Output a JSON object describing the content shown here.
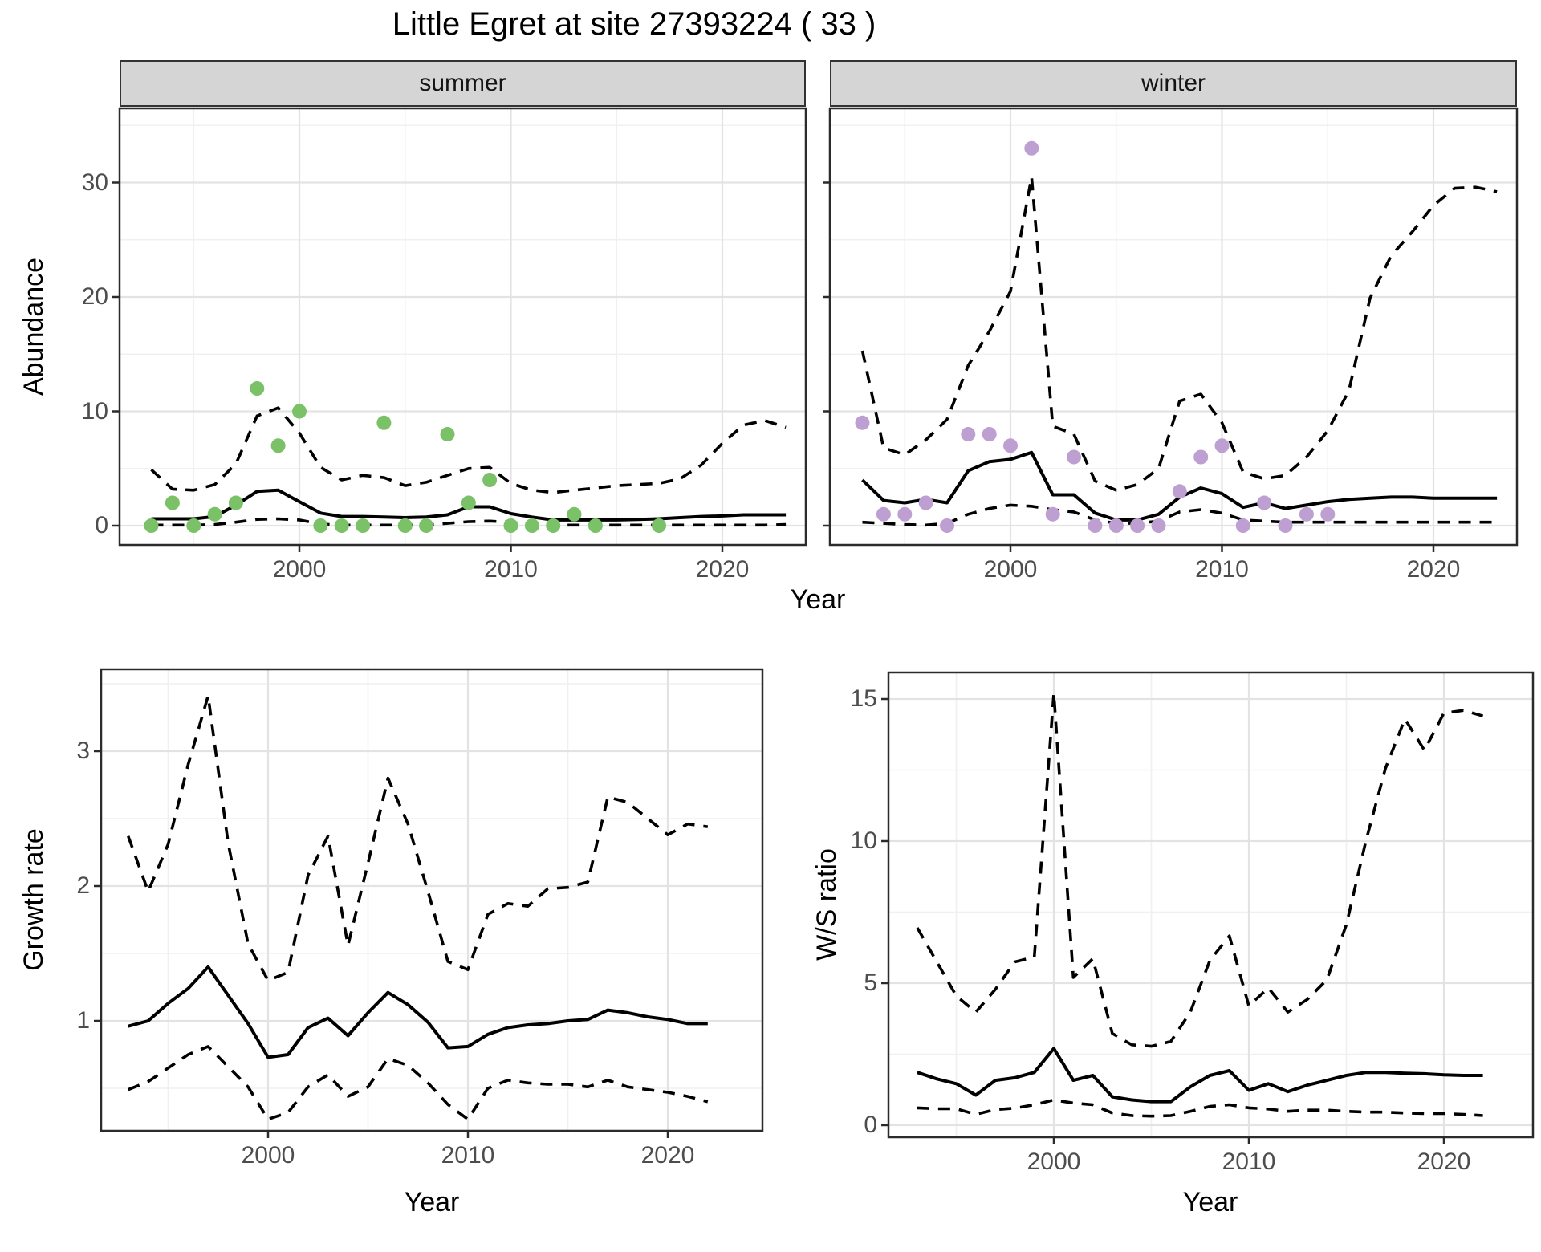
{
  "title": "Little Egret at site 27393224 ( 33 )",
  "colors": {
    "summer_point": "#7ac168",
    "winter_point": "#be9fd2",
    "line": "#000000",
    "strip_bg": "#d5d5d5",
    "grid_major": "#e3e3e3",
    "grid_minor": "#f0f0f0",
    "panel_border": "#2b2b2b",
    "tick_text": "#4d4d4d"
  },
  "chart_data": [
    {
      "name": "abundance-summer",
      "type": "line",
      "facet_label": "summer",
      "xlabel": "Year",
      "ylabel": "Abundance",
      "x_ticks": [
        2000,
        2010,
        2020
      ],
      "y_ticks": [
        0,
        10,
        20,
        30
      ],
      "xlim": [
        1991.8,
        2024.4
      ],
      "ylim": [
        -1.7,
        36.5
      ],
      "legend": "none",
      "grid": true,
      "years": [
        1993,
        1994,
        1995,
        1996,
        1997,
        1998,
        1999,
        2000,
        2001,
        2002,
        2003,
        2004,
        2005,
        2006,
        2007,
        2008,
        2009,
        2010,
        2011,
        2012,
        2013,
        2014,
        2015,
        2016,
        2017,
        2018,
        2019,
        2020,
        2021,
        2022,
        2023
      ],
      "series": [
        {
          "name": "median",
          "style": "solid",
          "values": [
            0.6,
            0.6,
            0.6,
            0.8,
            1.8,
            3.0,
            3.1,
            2.1,
            1.1,
            0.8,
            0.8,
            0.75,
            0.7,
            0.75,
            0.95,
            1.65,
            1.65,
            1.05,
            0.75,
            0.5,
            0.5,
            0.5,
            0.5,
            0.55,
            0.6,
            0.7,
            0.8,
            0.85,
            0.95,
            0.95,
            0.95
          ]
        },
        {
          "name": "upper 95% CI",
          "style": "dashed",
          "values": [
            4.9,
            3.2,
            3.1,
            3.6,
            5.4,
            9.6,
            10.3,
            8.1,
            5.1,
            4.0,
            4.4,
            4.2,
            3.5,
            3.8,
            4.4,
            5.0,
            5.1,
            3.7,
            3.1,
            2.9,
            3.1,
            3.3,
            3.5,
            3.6,
            3.7,
            4.1,
            5.3,
            7.2,
            8.8,
            9.2,
            8.6
          ]
        },
        {
          "name": "lower 95% CI",
          "style": "dashed",
          "values": [
            0.05,
            0.05,
            0.05,
            0.1,
            0.3,
            0.55,
            0.6,
            0.5,
            0.15,
            0.05,
            0.05,
            0.05,
            0.05,
            0.05,
            0.2,
            0.35,
            0.4,
            0.3,
            0.1,
            0.05,
            0.05,
            0.05,
            0.05,
            0.05,
            0.05,
            0.05,
            0.05,
            0.05,
            0.05,
            0.05,
            0.1
          ]
        }
      ],
      "points": {
        "name": "observed-counts-summer",
        "color_key": "summer_point",
        "x": [
          1993,
          1994,
          1995,
          1996,
          1997,
          1998,
          1999,
          2000,
          2001,
          2002,
          2003,
          2004,
          2005,
          2006,
          2007,
          2008,
          2009,
          2010,
          2011,
          2012,
          2013,
          2014,
          2017
        ],
        "y": [
          0,
          2,
          0,
          1,
          2,
          12,
          7,
          10,
          0,
          0,
          0,
          9,
          0,
          0,
          8,
          2,
          4,
          0,
          0,
          0,
          1,
          0,
          0
        ]
      }
    },
    {
      "name": "abundance-winter",
      "type": "line",
      "facet_label": "winter",
      "xlabel": "Year",
      "ylabel": "Abundance",
      "x_ticks": [
        2000,
        2010,
        2020
      ],
      "y_ticks": [
        0,
        10,
        20,
        30
      ],
      "xlim": [
        1991.8,
        2024.4
      ],
      "ylim": [
        -1.7,
        36.5
      ],
      "legend": "none",
      "grid": true,
      "years": [
        1993,
        1994,
        1995,
        1996,
        1997,
        1998,
        1999,
        2000,
        2001,
        2002,
        2003,
        2004,
        2005,
        2006,
        2007,
        2008,
        2009,
        2010,
        2011,
        2012,
        2013,
        2014,
        2015,
        2016,
        2017,
        2018,
        2019,
        2020,
        2021,
        2022,
        2023
      ],
      "series": [
        {
          "name": "median",
          "style": "solid",
          "values": [
            4.0,
            2.2,
            2.0,
            2.3,
            2.0,
            4.8,
            5.6,
            5.8,
            6.4,
            2.7,
            2.7,
            1.1,
            0.5,
            0.5,
            1.0,
            2.5,
            3.3,
            2.8,
            1.6,
            2.0,
            1.5,
            1.8,
            2.1,
            2.3,
            2.4,
            2.5,
            2.5,
            2.4,
            2.4,
            2.4,
            2.4
          ]
        },
        {
          "name": "upper 95% CI",
          "style": "dashed",
          "values": [
            15.3,
            6.8,
            6.2,
            7.5,
            9.3,
            14.0,
            17.0,
            20.5,
            30.5,
            8.7,
            8.0,
            3.9,
            3.1,
            3.6,
            5.0,
            10.9,
            11.5,
            9.0,
            4.7,
            4.1,
            4.4,
            6.0,
            8.3,
            11.8,
            19.9,
            23.6,
            25.7,
            28.0,
            29.5,
            29.6,
            29.2
          ]
        },
        {
          "name": "lower 95% CI",
          "style": "dashed",
          "values": [
            0.3,
            0.2,
            0.1,
            0.05,
            0.2,
            1.0,
            1.5,
            1.8,
            1.7,
            1.4,
            1.2,
            0.5,
            0.2,
            0.2,
            0.4,
            1.2,
            1.4,
            1.1,
            0.5,
            0.4,
            0.3,
            0.3,
            0.3,
            0.3,
            0.3,
            0.3,
            0.3,
            0.3,
            0.3,
            0.3,
            0.3
          ]
        }
      ],
      "points": {
        "name": "observed-counts-winter",
        "color_key": "winter_point",
        "x": [
          1993,
          1994,
          1995,
          1996,
          1997,
          1998,
          1999,
          2000,
          2001,
          2002,
          2003,
          2004,
          2005,
          2006,
          2007,
          2008,
          2009,
          2010,
          2011,
          2012,
          2013,
          2014,
          2015
        ],
        "y": [
          9,
          1,
          1,
          2,
          0,
          8,
          8,
          7,
          33,
          1,
          6,
          0,
          0,
          0,
          0,
          3,
          6,
          7,
          0,
          2,
          0,
          1,
          1
        ]
      }
    },
    {
      "name": "growth-rate",
      "type": "line",
      "facet_label": "",
      "xlabel": "Year",
      "ylabel": "Growth rate",
      "x_ticks": [
        2000,
        2010,
        2020
      ],
      "y_ticks": [
        1,
        2,
        3
      ],
      "xlim": [
        1991.6,
        2024.7
      ],
      "ylim": [
        0.19,
        3.61
      ],
      "legend": "none",
      "grid": true,
      "years": [
        1993,
        1994,
        1995,
        1996,
        1997,
        1998,
        1999,
        2000,
        2001,
        2002,
        2003,
        2004,
        2005,
        2006,
        2007,
        2008,
        2009,
        2010,
        2011,
        2012,
        2013,
        2014,
        2015,
        2016,
        2017,
        2018,
        2019,
        2020,
        2021,
        2022
      ],
      "series": [
        {
          "name": "median",
          "style": "solid",
          "values": [
            0.96,
            1.0,
            1.13,
            1.24,
            1.4,
            1.19,
            0.98,
            0.73,
            0.75,
            0.95,
            1.02,
            0.89,
            1.06,
            1.21,
            1.12,
            0.99,
            0.8,
            0.81,
            0.9,
            0.95,
            0.97,
            0.98,
            1.0,
            1.01,
            1.08,
            1.06,
            1.03,
            1.01,
            0.98,
            0.98
          ]
        },
        {
          "name": "upper 95% CI",
          "style": "dashed",
          "values": [
            2.37,
            1.96,
            2.31,
            2.9,
            3.41,
            2.32,
            1.57,
            1.3,
            1.36,
            2.08,
            2.37,
            1.56,
            2.17,
            2.8,
            2.46,
            1.96,
            1.44,
            1.38,
            1.79,
            1.87,
            1.85,
            1.98,
            1.99,
            2.03,
            2.66,
            2.62,
            2.5,
            2.38,
            2.46,
            2.44
          ]
        },
        {
          "name": "lower 95% CI",
          "style": "dashed",
          "values": [
            0.49,
            0.55,
            0.65,
            0.75,
            0.81,
            0.66,
            0.51,
            0.27,
            0.32,
            0.51,
            0.6,
            0.44,
            0.51,
            0.72,
            0.67,
            0.54,
            0.38,
            0.27,
            0.5,
            0.56,
            0.54,
            0.53,
            0.53,
            0.51,
            0.56,
            0.51,
            0.49,
            0.47,
            0.44,
            0.4
          ]
        }
      ],
      "points": null
    },
    {
      "name": "ws-ratio",
      "type": "line",
      "facet_label": "",
      "xlabel": "Year",
      "ylabel": "W/S ratio",
      "x_ticks": [
        2000,
        2010,
        2020
      ],
      "y_ticks": [
        0,
        5,
        10,
        15
      ],
      "xlim": [
        1991.6,
        2024.6
      ],
      "ylim": [
        -0.45,
        15.9
      ],
      "legend": "none",
      "grid": true,
      "years": [
        1993,
        1994,
        1995,
        1996,
        1997,
        1998,
        1999,
        2000,
        2001,
        2002,
        2003,
        2004,
        2005,
        2006,
        2007,
        2008,
        2009,
        2010,
        2011,
        2012,
        2013,
        2014,
        2015,
        2016,
        2017,
        2018,
        2019,
        2020,
        2021,
        2022
      ],
      "series": [
        {
          "name": "median",
          "style": "solid",
          "values": [
            1.86,
            1.63,
            1.46,
            1.06,
            1.58,
            1.67,
            1.86,
            2.7,
            1.58,
            1.75,
            1.0,
            0.89,
            0.83,
            0.83,
            1.35,
            1.75,
            1.92,
            1.23,
            1.46,
            1.18,
            1.41,
            1.58,
            1.75,
            1.86,
            1.86,
            1.83,
            1.81,
            1.77,
            1.75,
            1.75
          ]
        },
        {
          "name": "upper 95% CI",
          "style": "dashed",
          "values": [
            6.95,
            5.75,
            4.55,
            3.98,
            4.78,
            5.75,
            5.92,
            15.2,
            5.2,
            5.86,
            3.23,
            2.83,
            2.78,
            2.95,
            3.98,
            5.8,
            6.66,
            4.2,
            4.83,
            3.98,
            4.43,
            5.12,
            7.06,
            10.0,
            12.55,
            14.3,
            13.2,
            14.5,
            14.6,
            14.4
          ]
        },
        {
          "name": "lower 95% CI",
          "style": "dashed",
          "values": [
            0.61,
            0.58,
            0.58,
            0.38,
            0.55,
            0.6,
            0.72,
            0.89,
            0.78,
            0.72,
            0.43,
            0.34,
            0.32,
            0.34,
            0.49,
            0.66,
            0.72,
            0.61,
            0.57,
            0.49,
            0.53,
            0.53,
            0.49,
            0.46,
            0.46,
            0.43,
            0.41,
            0.41,
            0.38,
            0.34
          ]
        }
      ],
      "points": null
    }
  ]
}
